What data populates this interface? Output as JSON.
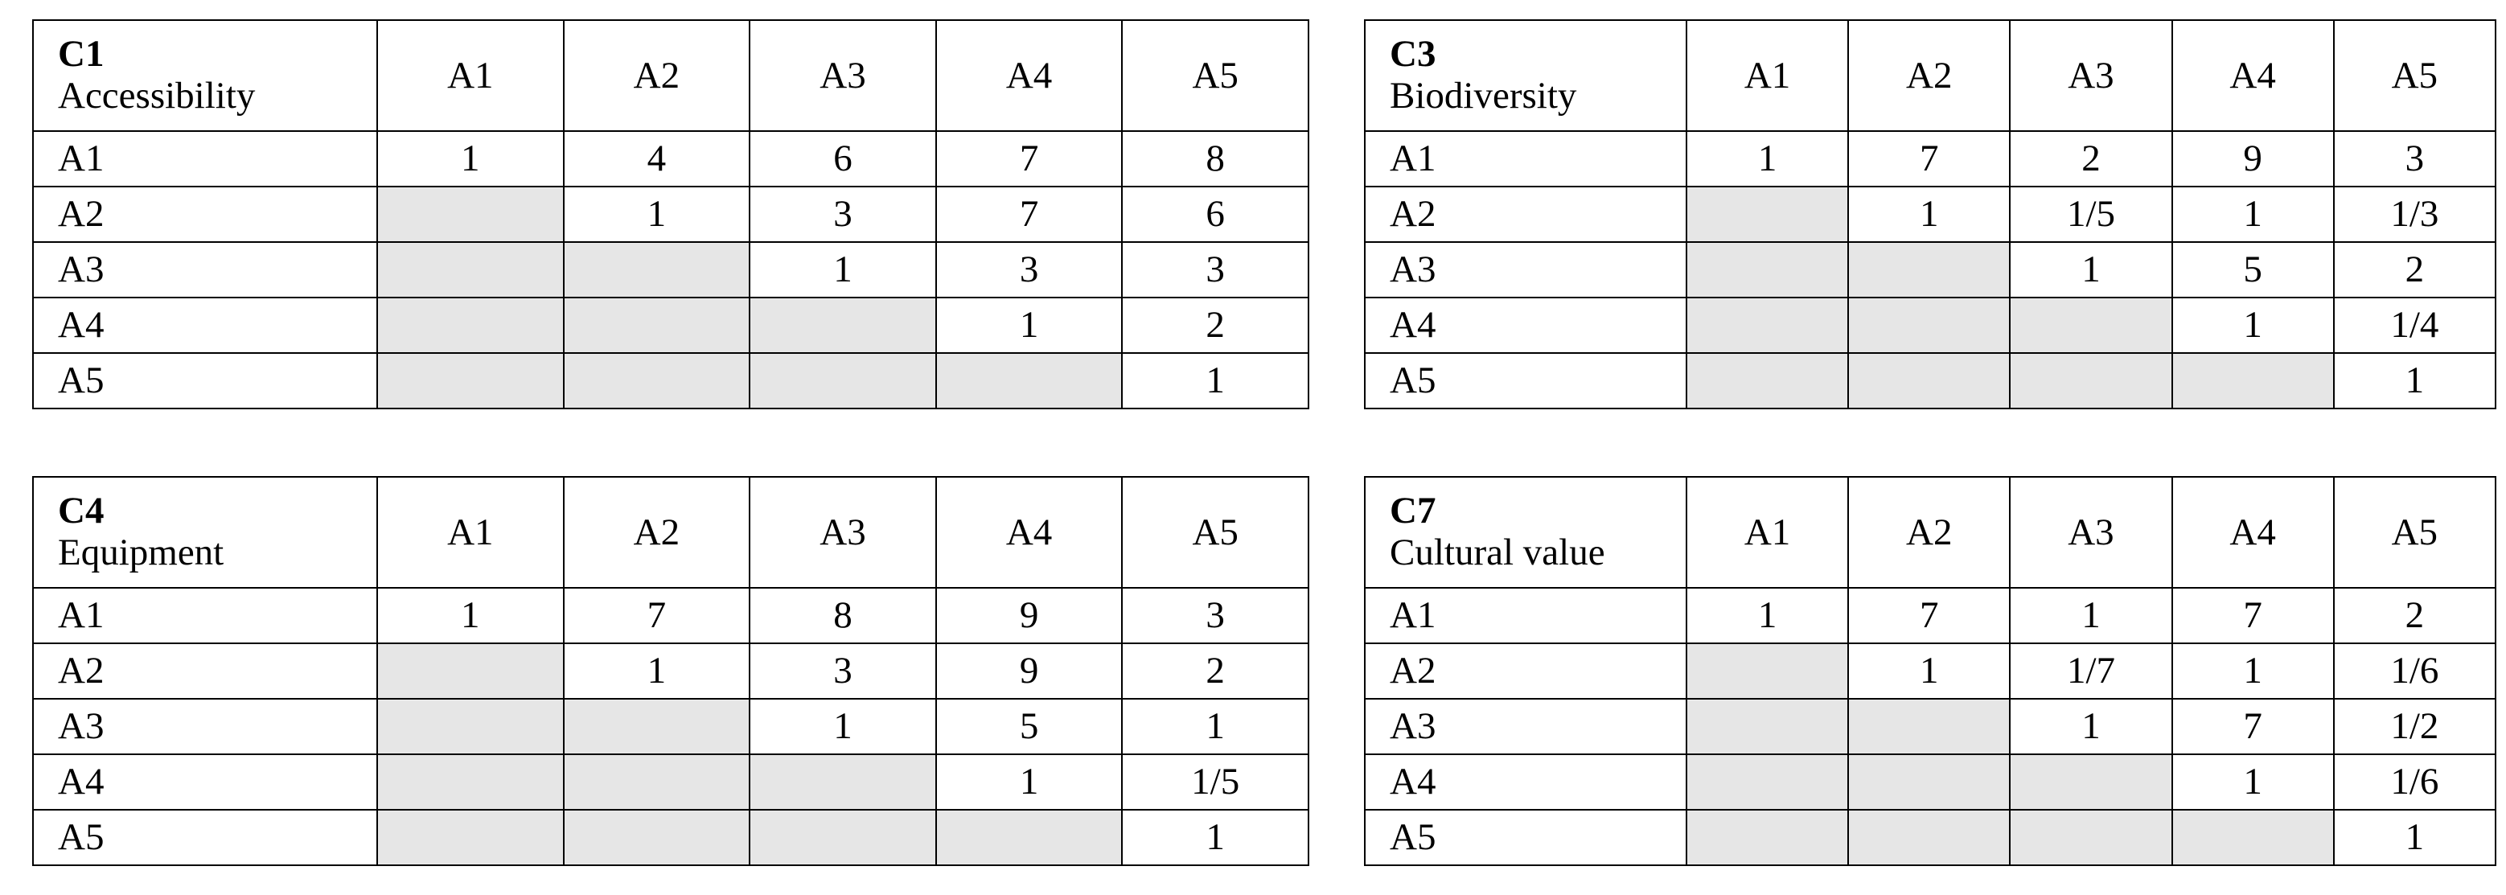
{
  "tables": [
    {
      "code": "C1",
      "name": "Accessibility",
      "columns": [
        "A1",
        "A2",
        "A3",
        "A4",
        "A5"
      ],
      "rows": [
        {
          "label": "A1",
          "cells": [
            1,
            4,
            6,
            7,
            8
          ]
        },
        {
          "label": "A2",
          "cells": [
            null,
            1,
            3,
            7,
            6
          ]
        },
        {
          "label": "A3",
          "cells": [
            null,
            null,
            1,
            3,
            3
          ]
        },
        {
          "label": "A4",
          "cells": [
            null,
            null,
            null,
            1,
            2
          ]
        },
        {
          "label": "A5",
          "cells": [
            null,
            null,
            null,
            null,
            1
          ]
        }
      ]
    },
    {
      "code": "C3",
      "name": "Biodiversity",
      "columns": [
        "A1",
        "A2",
        "A3",
        "A4",
        "A5"
      ],
      "rows": [
        {
          "label": "A1",
          "cells": [
            1,
            7,
            2,
            9,
            3
          ]
        },
        {
          "label": "A2",
          "cells": [
            null,
            1,
            "1/5",
            1,
            "1/3"
          ]
        },
        {
          "label": "A3",
          "cells": [
            null,
            null,
            1,
            5,
            2
          ]
        },
        {
          "label": "A4",
          "cells": [
            null,
            null,
            null,
            1,
            "1/4"
          ]
        },
        {
          "label": "A5",
          "cells": [
            null,
            null,
            null,
            null,
            1
          ]
        }
      ]
    },
    {
      "code": "C4",
      "name": "Equipment",
      "columns": [
        "A1",
        "A2",
        "A3",
        "A4",
        "A5"
      ],
      "rows": [
        {
          "label": "A1",
          "cells": [
            1,
            7,
            8,
            9,
            3
          ]
        },
        {
          "label": "A2",
          "cells": [
            null,
            1,
            3,
            9,
            2
          ]
        },
        {
          "label": "A3",
          "cells": [
            null,
            null,
            1,
            5,
            1
          ]
        },
        {
          "label": "A4",
          "cells": [
            null,
            null,
            null,
            1,
            "1/5"
          ]
        },
        {
          "label": "A5",
          "cells": [
            null,
            null,
            null,
            null,
            1
          ]
        }
      ]
    },
    {
      "code": "C7",
      "name": "Cultural value",
      "columns": [
        "A1",
        "A2",
        "A3",
        "A4",
        "A5"
      ],
      "rows": [
        {
          "label": "A1",
          "cells": [
            1,
            7,
            1,
            7,
            2
          ]
        },
        {
          "label": "A2",
          "cells": [
            null,
            1,
            "1/7",
            1,
            "1/6"
          ]
        },
        {
          "label": "A3",
          "cells": [
            null,
            null,
            1,
            7,
            "1/2"
          ]
        },
        {
          "label": "A4",
          "cells": [
            null,
            null,
            null,
            1,
            "1/6"
          ]
        },
        {
          "label": "A5",
          "cells": [
            null,
            null,
            null,
            null,
            1
          ]
        }
      ]
    }
  ]
}
